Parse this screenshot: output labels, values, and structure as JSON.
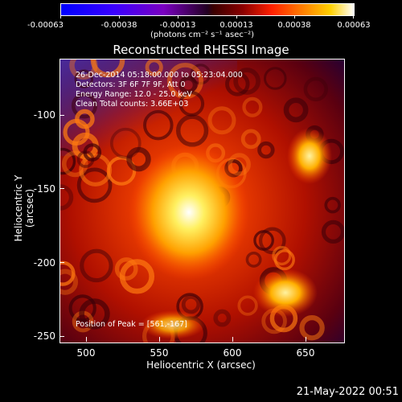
{
  "colorbar": {
    "ticks": [
      "-0.00063",
      "-0.00038",
      "-0.00013",
      "0.00013",
      "0.00038",
      "0.00063"
    ],
    "units": "(photons cm⁻² s⁻¹ asec⁻²)"
  },
  "title": "Reconstructed RHESSI Image",
  "annotations": {
    "time": "26-Dec-2014 05:18:00.000 to 05:23:04.000",
    "detectors": "Detectors: 3F 6F 7F 9F, Att 0",
    "energy": "Energy Range: 12.0 - 25.0 keV",
    "clean": "Clean     Total counts: 3.66E+03",
    "peak": "Position of Peak = [561,-167]"
  },
  "axes": {
    "xlabel": "Heliocentric X (arcsec)",
    "ylabel": "Heliocentric Y (arcsec)",
    "xticks": [
      "500",
      "550",
      "600",
      "650"
    ],
    "yticks": [
      "-100",
      "-150",
      "-200",
      "-250"
    ]
  },
  "footer_date": "21-May-2022 00:51"
}
